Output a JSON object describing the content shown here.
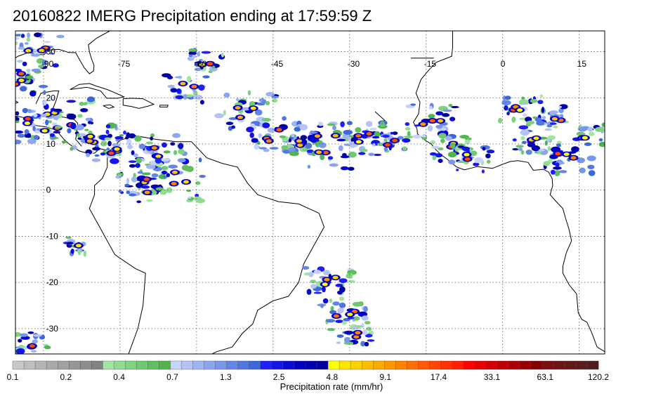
{
  "title": "20160822 IMERG Precipitation ending at 17:59:59 Z",
  "map": {
    "lon_labels": [
      "-90",
      "-75",
      "-60",
      "-45",
      "-30",
      "-15",
      "0",
      "15"
    ],
    "lat_labels": [
      "30",
      "20",
      "10",
      "0",
      "-10",
      "-20",
      "-30"
    ],
    "lon_range": [
      -95.5,
      20
    ],
    "lat_range": [
      -35.5,
      34.5
    ],
    "grid": "dotted",
    "coastline_color": "#000000"
  },
  "colorbar": {
    "title": "Precipitation rate (mm/hr)",
    "tick_labels": [
      "0.1",
      "0.2",
      "0.4",
      "0.7",
      "1.3",
      "2.5",
      "4.8",
      "9.1",
      "17.4",
      "33.1",
      "63.1",
      "120.2"
    ],
    "colors": [
      "#c8c8c8",
      "#bebebe",
      "#b4b4b4",
      "#aaaaaa",
      "#a0a0a0",
      "#969696",
      "#8c8c8c",
      "#828282",
      "#a0e6a0",
      "#90dc90",
      "#80d280",
      "#70c870",
      "#60be60",
      "#50b450",
      "#c8d2ff",
      "#b4c4fa",
      "#a0b4f5",
      "#8ca5f0",
      "#7896eb",
      "#6486e6",
      "#5077e1",
      "#3c68dc",
      "#1e1eff",
      "#1414eb",
      "#0a0ad7",
      "#0000c3",
      "#0000af",
      "#00009b",
      "#ffff00",
      "#ffe600",
      "#ffd200",
      "#ffbe00",
      "#ffaa00",
      "#ff9600",
      "#ff8200",
      "#ff6e00",
      "#ff5a00",
      "#ff4600",
      "#ff3200",
      "#ff1e00",
      "#ff0000",
      "#e60000",
      "#d20000",
      "#be0000",
      "#aa0000",
      "#960000",
      "#820000",
      "#781010",
      "#6e1414",
      "#641818",
      "#5a1c1c",
      "#501c1c"
    ]
  }
}
